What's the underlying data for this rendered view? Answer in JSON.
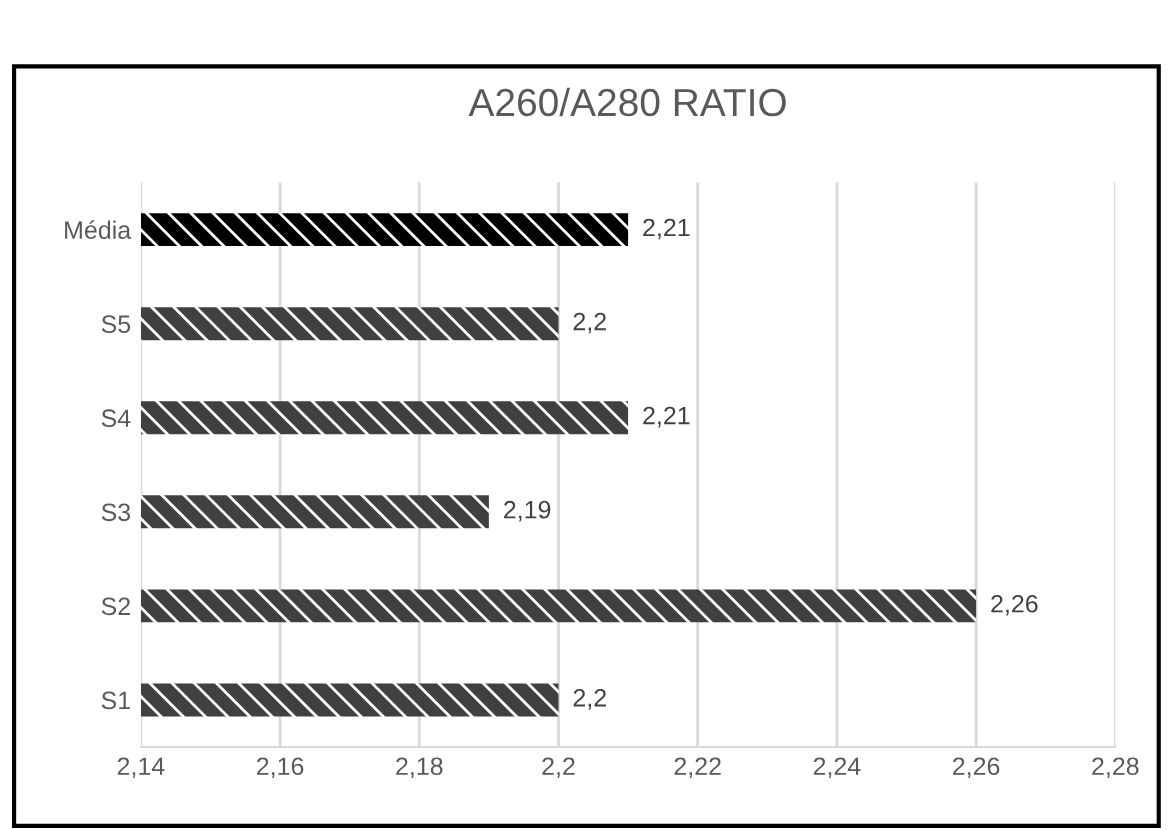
{
  "chart_data": {
    "type": "bar",
    "orientation": "horizontal",
    "title": "A260/A280 RATIO",
    "categories": [
      "Média",
      "S5",
      "S4",
      "S3",
      "S2",
      "S1"
    ],
    "values": [
      2.21,
      2.2,
      2.21,
      2.19,
      2.26,
      2.2
    ],
    "value_labels": [
      "2,21",
      "2,2",
      "2,21",
      "2,19",
      "2,26",
      "2,2"
    ],
    "colors": [
      "#000000",
      "#404040",
      "#404040",
      "#404040",
      "#404040",
      "#404040"
    ],
    "xlim": [
      2.14,
      2.28
    ],
    "xticks": [
      {
        "value": 2.14,
        "label": "2,14"
      },
      {
        "value": 2.16,
        "label": "2,16"
      },
      {
        "value": 2.18,
        "label": "2,18"
      },
      {
        "value": 2.2,
        "label": "2,2"
      },
      {
        "value": 2.22,
        "label": "2,22"
      },
      {
        "value": 2.24,
        "label": "2,24"
      },
      {
        "value": 2.26,
        "label": "2,26"
      },
      {
        "value": 2.28,
        "label": "2,28"
      }
    ],
    "grid": "x"
  }
}
